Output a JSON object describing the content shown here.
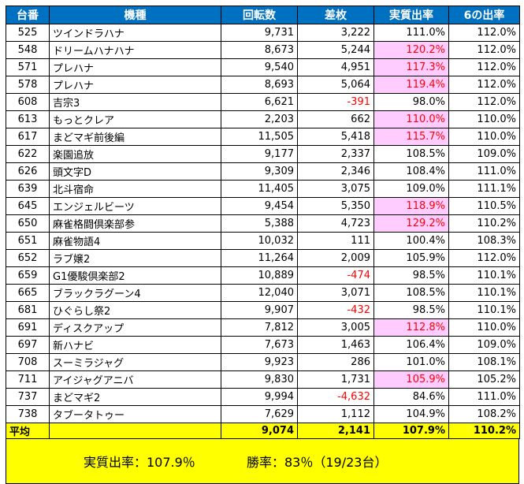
{
  "headers": [
    "台番",
    "機種",
    "回転数",
    "差枚",
    "実質出率",
    "6の出率"
  ],
  "rows": [
    {
      "no": "525",
      "name": "ツインドラハナ",
      "spins": "9,731",
      "diff": "3,222",
      "rate": "111.0%",
      "six": "112.0%",
      "neg": false,
      "hi": false
    },
    {
      "no": "548",
      "name": "ドリームハナハナ",
      "spins": "8,673",
      "diff": "5,244",
      "rate": "120.2%",
      "six": "112.0%",
      "neg": false,
      "hi": true
    },
    {
      "no": "571",
      "name": "プレハナ",
      "spins": "9,540",
      "diff": "4,951",
      "rate": "117.3%",
      "six": "112.0%",
      "neg": false,
      "hi": true
    },
    {
      "no": "578",
      "name": "プレハナ",
      "spins": "8,693",
      "diff": "5,064",
      "rate": "119.4%",
      "six": "112.0%",
      "neg": false,
      "hi": true
    },
    {
      "no": "608",
      "name": "吉宗3",
      "spins": "6,621",
      "diff": "-391",
      "rate": "98.0%",
      "six": "112.0%",
      "neg": true,
      "hi": false
    },
    {
      "no": "613",
      "name": "もっとクレア",
      "spins": "2,203",
      "diff": "662",
      "rate": "110.0%",
      "six": "110.0%",
      "neg": false,
      "hi": true
    },
    {
      "no": "617",
      "name": "まどマギ前後編",
      "spins": "11,505",
      "diff": "5,418",
      "rate": "115.7%",
      "six": "110.0%",
      "neg": false,
      "hi": true
    },
    {
      "no": "622",
      "name": "楽園追放",
      "spins": "9,177",
      "diff": "2,337",
      "rate": "108.5%",
      "six": "109.0%",
      "neg": false,
      "hi": false
    },
    {
      "no": "626",
      "name": "頭文字D",
      "spins": "9,309",
      "diff": "2,346",
      "rate": "108.4%",
      "six": "111.0%",
      "neg": false,
      "hi": false
    },
    {
      "no": "639",
      "name": "北斗宿命",
      "spins": "11,405",
      "diff": "3,075",
      "rate": "109.0%",
      "six": "111.1%",
      "neg": false,
      "hi": false
    },
    {
      "no": "645",
      "name": "エンジェルビーツ",
      "spins": "9,454",
      "diff": "5,350",
      "rate": "118.9%",
      "six": "110.5%",
      "neg": false,
      "hi": true
    },
    {
      "no": "650",
      "name": "麻雀格闘倶楽部参",
      "spins": "5,388",
      "diff": "4,723",
      "rate": "129.2%",
      "six": "110.2%",
      "neg": false,
      "hi": true
    },
    {
      "no": "651",
      "name": "麻雀物語4",
      "spins": "10,032",
      "diff": "111",
      "rate": "100.4%",
      "six": "108.3%",
      "neg": false,
      "hi": false
    },
    {
      "no": "652",
      "name": "ラブ嬢2",
      "spins": "11,264",
      "diff": "2,009",
      "rate": "105.9%",
      "six": "112.0%",
      "neg": false,
      "hi": false
    },
    {
      "no": "659",
      "name": "G1優駿倶楽部2",
      "spins": "10,889",
      "diff": "-474",
      "rate": "98.5%",
      "six": "110.1%",
      "neg": true,
      "hi": false
    },
    {
      "no": "665",
      "name": "ブラックラグーン4",
      "spins": "12,040",
      "diff": "3,071",
      "rate": "108.5%",
      "six": "110.1%",
      "neg": false,
      "hi": false
    },
    {
      "no": "681",
      "name": "ひぐらし祭2",
      "spins": "9,907",
      "diff": "-432",
      "rate": "98.5%",
      "six": "110.1%",
      "neg": true,
      "hi": false
    },
    {
      "no": "691",
      "name": "ディスクアップ",
      "spins": "7,812",
      "diff": "3,005",
      "rate": "112.8%",
      "six": "110.0%",
      "neg": false,
      "hi": true
    },
    {
      "no": "697",
      "name": "新ハナビ",
      "spins": "7,673",
      "diff": "1,463",
      "rate": "106.4%",
      "six": "109.0%",
      "neg": false,
      "hi": false
    },
    {
      "no": "708",
      "name": "スーミラジャグ",
      "spins": "9,923",
      "diff": "286",
      "rate": "101.0%",
      "six": "108.1%",
      "neg": false,
      "hi": false
    },
    {
      "no": "711",
      "name": "アイジャグアニバ",
      "spins": "9,830",
      "diff": "1,731",
      "rate": "105.9%",
      "six": "105.2%",
      "neg": false,
      "hi": true
    },
    {
      "no": "737",
      "name": "まどマギ2",
      "spins": "9,994",
      "diff": "-4,632",
      "rate": "84.6%",
      "six": "111.0%",
      "neg": true,
      "hi": false
    },
    {
      "no": "738",
      "name": "タブータトゥー",
      "spins": "7,629",
      "diff": "1,112",
      "rate": "104.9%",
      "six": "108.2%",
      "neg": false,
      "hi": false
    }
  ],
  "average": {
    "label": "平均",
    "name": "",
    "spins": "9,074",
    "diff": "2,141",
    "rate": "107.9%",
    "six": "110.2%"
  },
  "summary": {
    "rate_text": "実質出率：107.9％",
    "win_text": "勝率：83％（19/23台）"
  },
  "colors": {
    "header_bg": "#0070c0",
    "header_text": "#ffffff",
    "highlight_bg": "#ffccff",
    "negative_text": "#ff0000",
    "average_bg": "#ffff00"
  }
}
